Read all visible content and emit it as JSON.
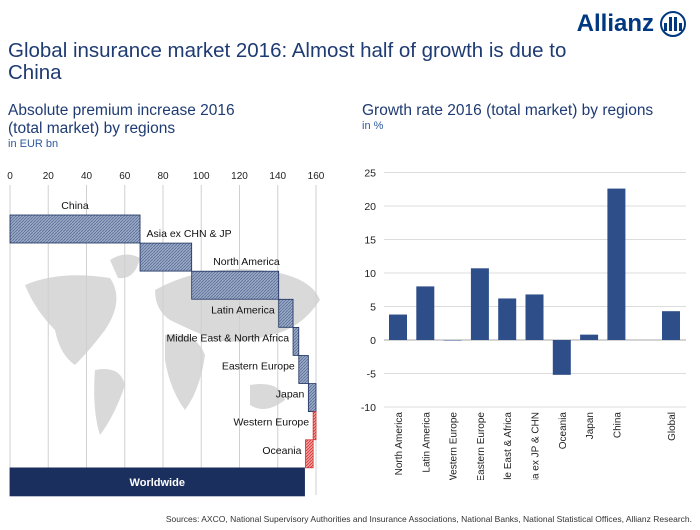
{
  "logo": {
    "text": "Allianz"
  },
  "title": "Global insurance market 2016: Almost half of growth is due to China",
  "footer": "Sources: AXCO, National Supervisory Authorities and Insurance Associations, National Banks, National Statistical Offices, Allianz Research.",
  "colors": {
    "accent": "#1f3b73",
    "bar": "#2e4e8a",
    "hatch_positive": "#8f9fbf",
    "hatch_negative": "#e05555",
    "total": "#1b2f5e",
    "map": "#d9d9d9"
  },
  "chart_data": [
    {
      "type": "bar",
      "subtype": "waterfall-horizontal",
      "title": "Absolute premium  increase 2016 (total market) by regions",
      "title_lines": [
        "Absolute premium  increase 2016",
        "(total market) by regions"
      ],
      "unit": "in EUR bn",
      "xlim": [
        0,
        160
      ],
      "xticks": [
        "0",
        "20",
        "40",
        "60",
        "80",
        "100",
        "120",
        "140",
        "160"
      ],
      "grid": true,
      "categories": [
        "China",
        "Asia ex CHN & JP",
        "North America",
        "Latin America",
        "Middle East & North Africa",
        "Eastern Europe",
        "Japan",
        "Western Europe",
        "Oceania",
        "Worldwide"
      ],
      "values": [
        68,
        27,
        45.5,
        7.5,
        3,
        5,
        4,
        -1.5,
        -4,
        154
      ]
    },
    {
      "type": "bar",
      "title": "Growth rate 2016 (total market) by regions",
      "unit": "in %",
      "ylim": [
        -10,
        25
      ],
      "yticks": [
        "25",
        "20",
        "15",
        "10",
        "5",
        "0",
        "-5",
        "-10"
      ],
      "grid": true,
      "categories": [
        "North America",
        "Latin America",
        "Western Europe",
        "Eastern Europe",
        "Middle East & Africa",
        "Asia ex JP & CHN",
        "Oceania",
        "Japan",
        "China",
        "",
        "Global"
      ],
      "values": [
        3.8,
        8.0,
        0.0,
        10.7,
        6.2,
        6.8,
        -5.2,
        0.8,
        22.6,
        null,
        4.3
      ]
    }
  ]
}
